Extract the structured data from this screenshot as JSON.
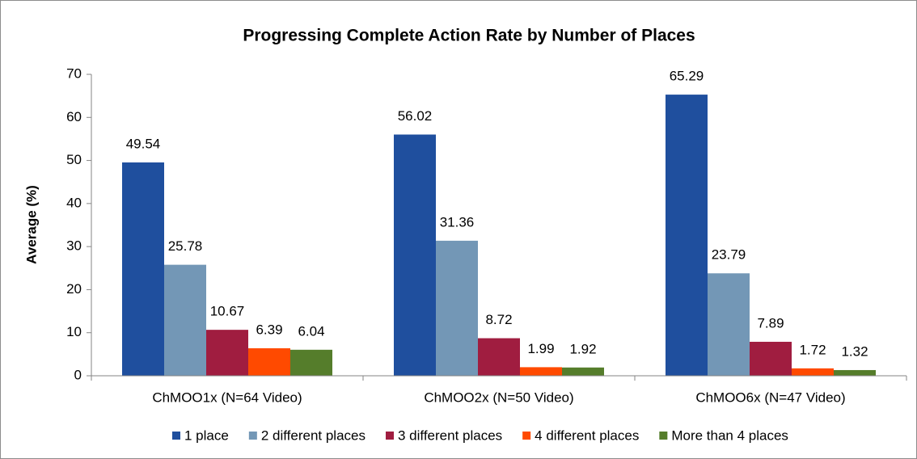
{
  "chart_data": {
    "type": "bar",
    "title": "Progressing Complete Action Rate by Number of Places",
    "ylabel": "Average (%)",
    "categories": [
      "ChMOO1x (N=64 Video)",
      "ChMOO2x (N=50 Video)",
      "ChMOO6x (N=47 Video)"
    ],
    "series": [
      {
        "name": "1 place",
        "color": "#1f4f9e",
        "values": [
          49.54,
          56.02,
          65.29
        ]
      },
      {
        "name": "2 different places",
        "color": "#7397b6",
        "values": [
          25.78,
          31.36,
          23.79
        ]
      },
      {
        "name": "3 different places",
        "color": "#a01d40",
        "values": [
          10.67,
          8.72,
          7.89
        ]
      },
      {
        "name": "4 different places",
        "color": "#ff4a00",
        "values": [
          6.39,
          1.99,
          1.72
        ]
      },
      {
        "name": "More than 4 places",
        "color": "#557d2b",
        "values": [
          6.04,
          1.92,
          1.32
        ]
      }
    ],
    "ylim": [
      0,
      70
    ],
    "yticks": [
      0,
      10,
      20,
      30,
      40,
      50,
      60,
      70
    ],
    "grid": false,
    "legend": "bottom"
  }
}
